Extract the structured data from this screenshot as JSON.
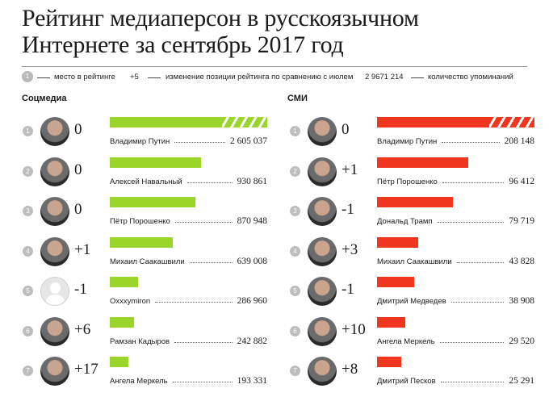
{
  "title": {
    "line1": "Рейтинг медиаперсон в русскоязычном",
    "line2": "Интернете за сентябрь 2017 год"
  },
  "legend": {
    "rank_example": "1",
    "rank_text": "место в рейтинге",
    "change_example": "+5",
    "change_text": "изменение позиции рейтинга по сравнению с июлем",
    "count_example": "2 9671 214",
    "count_text": "количество упоминаний"
  },
  "colors": {
    "social_bar": "#9bd52c",
    "media_bar": "#f0361f",
    "rank_dot": "#bdbdbd"
  },
  "chart_data": [
    {
      "type": "bar",
      "title": "Соцмедиа",
      "orientation": "horizontal",
      "color": "#9bd52c",
      "break_on_first_bar": true,
      "categories": [
        "Владимир Путин",
        "Алексей Навальный",
        "Пётр Порошенко",
        "Михаил Саакашвили",
        "Oxxxymiron",
        "Рамзан Кадыров",
        "Ангела Меркель"
      ],
      "ranks": [
        "1",
        "2",
        "3",
        "4",
        "5",
        "6",
        "7"
      ],
      "changes": [
        "0",
        "0",
        "0",
        "+1",
        "-1",
        "+6",
        "+17"
      ],
      "value_labels": [
        "2 605 037",
        "930 861",
        "870 948",
        "639 008",
        "286 960",
        "242 882",
        "193 331"
      ],
      "values": [
        2605037,
        930861,
        870948,
        639008,
        286960,
        242882,
        193331
      ],
      "avatars": [
        "person-photo",
        "person-photo",
        "person-photo",
        "person-photo",
        "blank-avatar",
        "person-photo",
        "person-photo"
      ]
    },
    {
      "type": "bar",
      "title": "СМИ",
      "orientation": "horizontal",
      "color": "#f0361f",
      "break_on_first_bar": true,
      "categories": [
        "Владимир Путин",
        "Пётр Порошенко",
        "Дональд Трамп",
        "Михаил Саакашвили",
        "Дмитрий Медведев",
        "Ангела Меркель",
        "Дмитрий Песков"
      ],
      "ranks": [
        "1",
        "2",
        "3",
        "4",
        "5",
        "6",
        "7"
      ],
      "changes": [
        "0",
        "+1",
        "-1",
        "+3",
        "-1",
        "+10",
        "+8"
      ],
      "value_labels": [
        "208 148",
        "96 412",
        "79 719",
        "43 828",
        "38 908",
        "29 520",
        "25 291"
      ],
      "values": [
        208148,
        96412,
        79719,
        43828,
        38908,
        29520,
        25291
      ],
      "avatars": [
        "person-photo",
        "person-photo",
        "person-photo",
        "person-photo",
        "person-photo",
        "person-photo",
        "person-photo"
      ]
    }
  ]
}
